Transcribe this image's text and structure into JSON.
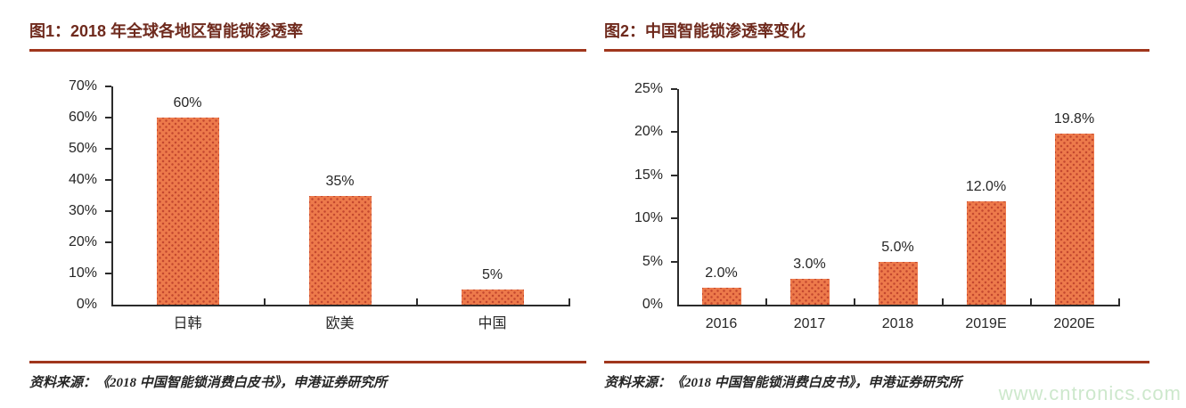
{
  "colors": {
    "title": "#6F2A1D",
    "rule": "#A0361C",
    "axis": "#2B2B2B",
    "bar_fill": "#ED7A4B",
    "bar_dot": "#C3472E",
    "text": "#262626",
    "watermark": "#CDE8CC"
  },
  "sources": {
    "left": "资料来源：《2018 中国智能锁消费白皮书》，申港证券研究所",
    "right": "资料来源：《2018 中国智能锁消费白皮书》，申港证券研究所"
  },
  "watermark": {
    "text": "www.cntronics.com"
  },
  "chart_data": [
    {
      "type": "bar",
      "title": "图1：2018 年全球各地区智能锁渗透率",
      "categories": [
        "日韩",
        "欧美",
        "中国"
      ],
      "values": [
        60,
        35,
        5
      ],
      "data_labels": [
        "60%",
        "35%",
        "5%"
      ],
      "xlabel": "",
      "ylabel": "",
      "ylim": [
        0,
        70
      ],
      "ytick_step": 10,
      "ytick_labels": [
        "0%",
        "10%",
        "20%",
        "30%",
        "40%",
        "50%",
        "60%",
        "70%"
      ],
      "grid": false,
      "legend": "none",
      "bar_color": "#ED7A4B"
    },
    {
      "type": "bar",
      "title": "图2：中国智能锁渗透率变化",
      "categories": [
        "2016",
        "2017",
        "2018",
        "2019E",
        "2020E"
      ],
      "values": [
        2.0,
        3.0,
        5.0,
        12.0,
        19.8
      ],
      "data_labels": [
        "2.0%",
        "3.0%",
        "5.0%",
        "12.0%",
        "19.8%"
      ],
      "xlabel": "",
      "ylabel": "",
      "ylim": [
        0,
        25
      ],
      "ytick_step": 5,
      "ytick_labels": [
        "0%",
        "5%",
        "10%",
        "15%",
        "20%",
        "25%"
      ],
      "grid": false,
      "legend": "none",
      "bar_color": "#ED7A4B"
    }
  ]
}
